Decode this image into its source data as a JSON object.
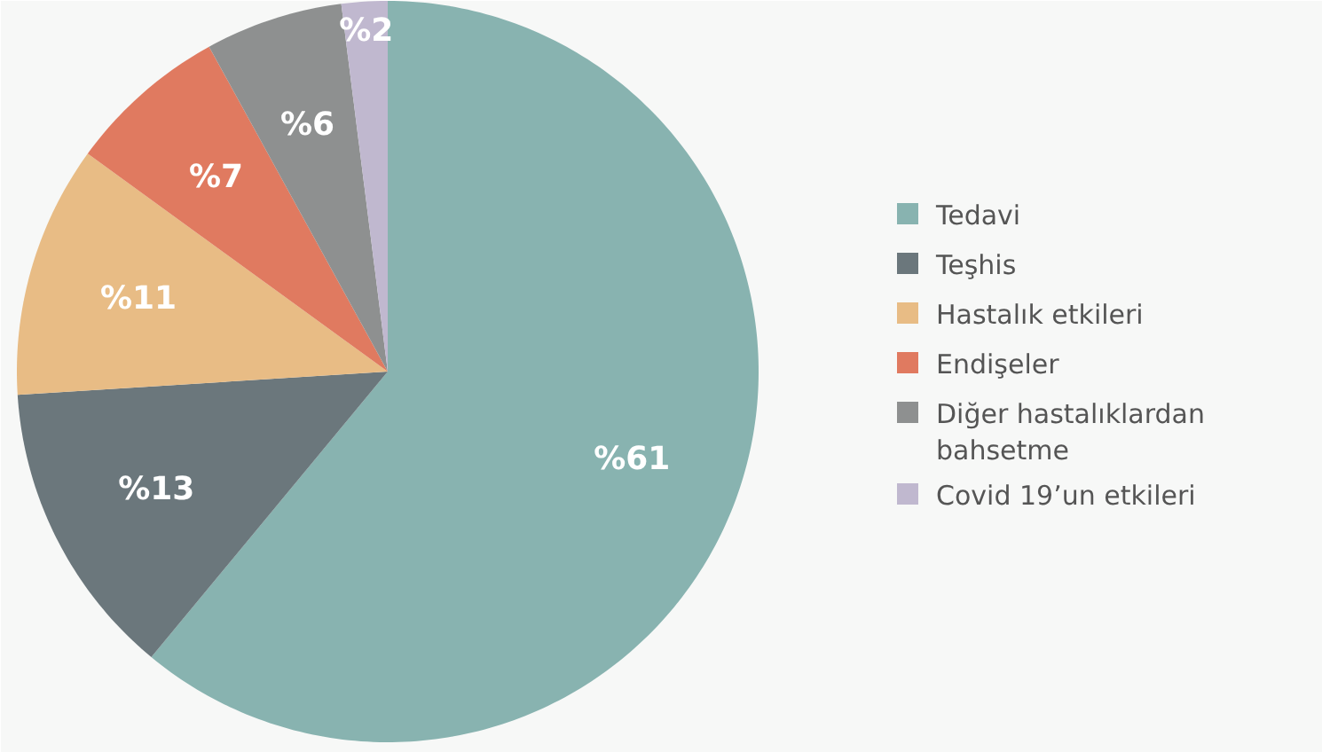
{
  "chart_data": {
    "type": "pie",
    "categories": [
      "Tedavi",
      "Teşhis",
      "Hastalık etkileri",
      "Endişeler",
      "Diğer hastalıklardan bahsetme",
      "Covid 19’un etkileri"
    ],
    "values": [
      61,
      13,
      11,
      7,
      6,
      2
    ],
    "colors": [
      "#88b3b0",
      "#6b777c",
      "#e8bc85",
      "#e07a60",
      "#8e9090",
      "#c0b8cf"
    ],
    "value_labels": [
      "%61",
      "%13",
      "%11",
      "%7",
      "%6",
      "%2"
    ],
    "legend": "right"
  }
}
